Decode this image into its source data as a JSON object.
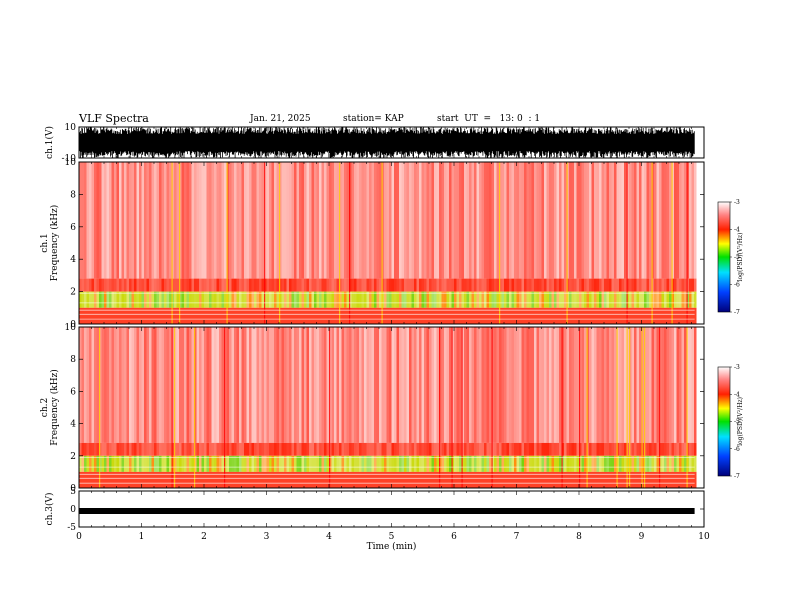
{
  "header": {
    "title": "VLF Spectra",
    "date": "Jan. 21, 2025",
    "station": "station= KAP",
    "start": "start  UT  =   13: 0  : 1"
  },
  "chart_data": [
    {
      "type": "line",
      "ylabel": "ch.1(V)",
      "ylim": [
        -10,
        10
      ],
      "yticks": [
        "10",
        "-10"
      ],
      "xlim": [
        0,
        10
      ]
    },
    {
      "type": "heatmap",
      "ylabel": "ch.1\nFrequency  (kHz)",
      "ylim": [
        0,
        10
      ],
      "yticks": [
        "0",
        "2",
        "4",
        "6",
        "8",
        "10"
      ],
      "xlim": [
        0,
        10
      ],
      "colorbar": {
        "label": "log(PSD)(V²/Hz)",
        "range": [
          -7,
          -3
        ],
        "ticks": [
          "-3",
          "-4",
          "-5",
          "-6",
          "-7"
        ]
      }
    },
    {
      "type": "heatmap",
      "ylabel": "ch.2\nFrequency  (kHz)",
      "ylim": [
        0,
        10
      ],
      "yticks": [
        "0",
        "2",
        "4",
        "6",
        "8",
        "10"
      ],
      "xlim": [
        0,
        10
      ],
      "colorbar": {
        "label": "log(PSD)(V²/Hz)",
        "range": [
          -7,
          -3
        ],
        "ticks": [
          "-3",
          "-4",
          "-5",
          "-6",
          "-7"
        ]
      }
    },
    {
      "type": "line",
      "ylabel": "ch.3(V)",
      "ylim": [
        -5,
        5
      ],
      "yticks": [
        "5",
        "0",
        "-5"
      ],
      "xlim": [
        0,
        10
      ],
      "xlabel": "Time  (min)",
      "xticks": [
        "0",
        "1",
        "2",
        "3",
        "4",
        "5",
        "6",
        "7",
        "8",
        "9",
        "10"
      ]
    }
  ]
}
